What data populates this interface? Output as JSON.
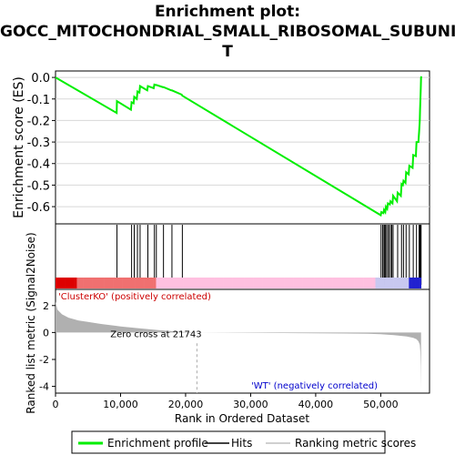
{
  "title_lines": [
    "Enrichment plot:",
    "GOCC_MITOCHONDRIAL_SMALL_RIBOSOMAL_SUBUNI",
    "T"
  ],
  "legend": {
    "enrichment_label": "Enrichment profile",
    "hits_label": "Hits",
    "ranking_label": "Ranking metric scores"
  },
  "colors": {
    "enrichment_line": "#00ee00",
    "hits": "#000000",
    "ranked_fill": "#b0b0b0",
    "positive_band": "#ff0000",
    "negative_band": "#0000ff",
    "pink_band": "#ffc0e0"
  },
  "chart_data": [
    {
      "type": "line",
      "name": "enrichment",
      "ylabel": "Enrichment score (ES)",
      "xlim": [
        0,
        57500
      ],
      "ylim": [
        -0.68,
        0.03
      ],
      "y_ticks": [
        0.0,
        -0.1,
        -0.2,
        -0.3,
        -0.4,
        -0.5,
        -0.6
      ],
      "y_tick_labels": [
        "0.0",
        "-0.1",
        "-0.2",
        "-0.3",
        "-0.4",
        "-0.5",
        "-0.6"
      ],
      "grid": true,
      "series": [
        {
          "x": [
            0,
            9400,
            9450,
            11600,
            11700,
            12000,
            12100,
            12500,
            12600,
            12900,
            13000,
            14100,
            14200,
            15100,
            15200,
            15400,
            15500,
            16500,
            16600,
            17800,
            17900,
            19400,
            19500,
            50000,
            50100,
            50400,
            50500,
            50700,
            50800,
            51000,
            51100,
            51400,
            51500,
            51800,
            51900,
            52500,
            52600,
            53100,
            53200,
            53400,
            53500,
            53800,
            53900,
            54300,
            54400,
            54900,
            55000,
            55400,
            55500,
            55800,
            55900,
            56000,
            56050,
            56100,
            56150,
            56200,
            56250
          ],
          "y": [
            0.0,
            -0.165,
            -0.11,
            -0.15,
            -0.115,
            -0.12,
            -0.09,
            -0.1,
            -0.065,
            -0.07,
            -0.04,
            -0.06,
            -0.04,
            -0.05,
            -0.033,
            -0.035,
            -0.035,
            -0.045,
            -0.045,
            -0.06,
            -0.06,
            -0.08,
            -0.085,
            -0.64,
            -0.625,
            -0.63,
            -0.615,
            -0.625,
            -0.6,
            -0.61,
            -0.585,
            -0.59,
            -0.575,
            -0.585,
            -0.55,
            -0.575,
            -0.535,
            -0.55,
            -0.495,
            -0.5,
            -0.48,
            -0.49,
            -0.44,
            -0.45,
            -0.41,
            -0.42,
            -0.36,
            -0.365,
            -0.3,
            -0.3,
            -0.25,
            -0.2,
            -0.15,
            -0.1,
            -0.05,
            0.0,
            0.005
          ]
        }
      ]
    },
    {
      "type": "scatter",
      "name": "hits",
      "xlim": [
        0,
        57500
      ],
      "hit_positions": [
        9450,
        11700,
        12100,
        12600,
        13000,
        14200,
        15200,
        15500,
        16600,
        17900,
        19500,
        50050,
        50300,
        50500,
        50650,
        50800,
        51050,
        51250,
        51500,
        51700,
        51900,
        52600,
        53200,
        53500,
        53900,
        54400,
        55000,
        55500,
        55900,
        56000,
        56050,
        56100,
        56150,
        56200
      ]
    },
    {
      "type": "area",
      "name": "ranked-list-metric",
      "ylabel": "Ranked list metric (Signal2Noise)",
      "xlabel": "Rank in Ordered Dataset",
      "xlim": [
        0,
        57500
      ],
      "ylim": [
        -4.5,
        3.2
      ],
      "x_ticks": [
        0,
        10000,
        20000,
        30000,
        40000,
        50000
      ],
      "x_tick_labels": [
        "0",
        "10,000",
        "20,000",
        "30,000",
        "40,000",
        "50,000"
      ],
      "y_ticks": [
        2,
        0,
        -2,
        -4
      ],
      "y_tick_labels": [
        "2",
        "0",
        "-2",
        "-4"
      ],
      "x": [
        0,
        300,
        1000,
        2000,
        3500,
        5000,
        7000,
        10000,
        13000,
        16000,
        19000,
        21743,
        30000,
        40000,
        48000,
        50000,
        52000,
        54000,
        55000,
        55500,
        55800,
        56000,
        56100,
        56150,
        56200
      ],
      "values": [
        2.3,
        1.7,
        1.35,
        1.1,
        0.9,
        0.78,
        0.63,
        0.45,
        0.3,
        0.17,
        0.06,
        0.0,
        -0.03,
        -0.06,
        -0.09,
        -0.13,
        -0.2,
        -0.3,
        -0.4,
        -0.5,
        -0.65,
        -0.9,
        -1.5,
        -2.5,
        -4.2
      ],
      "zero_cross": 21743,
      "zero_cross_label": "Zero cross at 21743",
      "positive_label": "'ClusterKO' (positively correlated)",
      "negative_label": "'WT' (negatively correlated)"
    }
  ]
}
